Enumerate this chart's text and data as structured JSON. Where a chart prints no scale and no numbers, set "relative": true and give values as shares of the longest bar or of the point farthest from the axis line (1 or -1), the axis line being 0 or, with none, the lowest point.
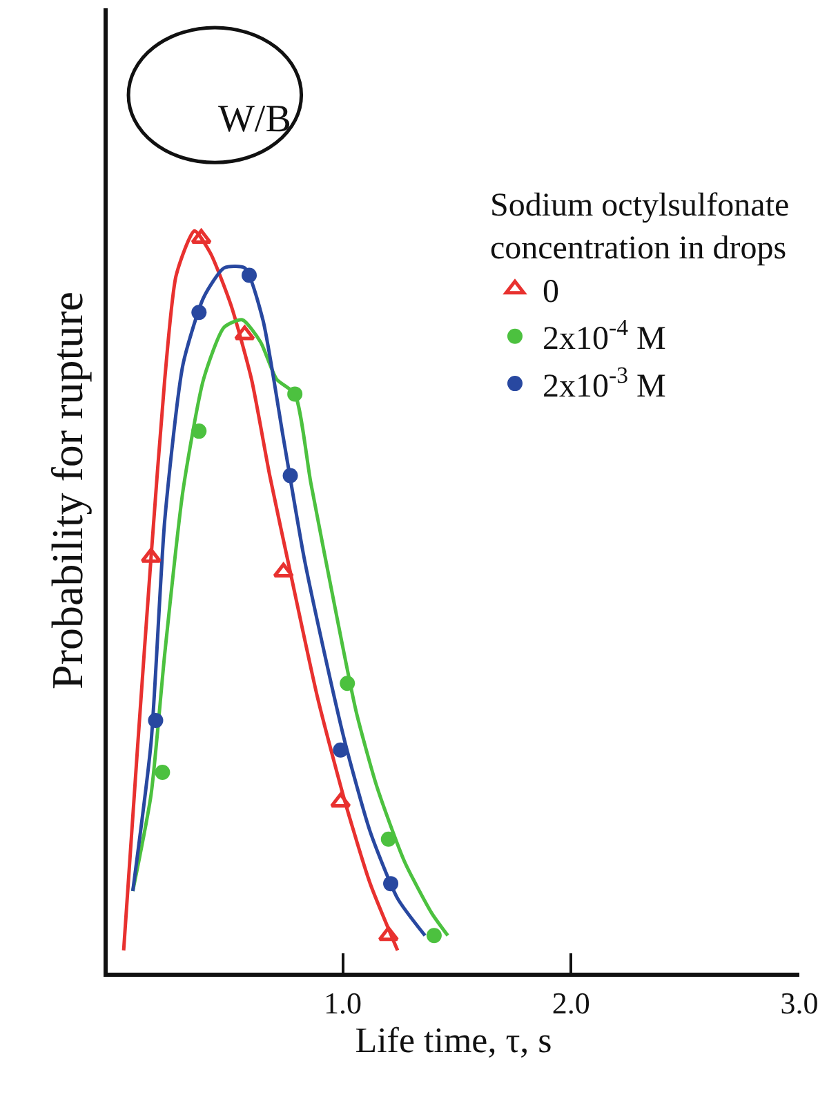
{
  "chart_data": {
    "type": "scatter",
    "relative": true,
    "xlabel": "Life time, τ, s",
    "ylabel": "Probability for rupture",
    "legend_title": "Sodium octylsulfonate\nconcentration in drops",
    "legend": "top right",
    "annotations": [
      "W/B"
    ],
    "xlim": [
      -0.03,
      3.0
    ],
    "xticks": [
      {
        "value": 1,
        "label": "1.0"
      },
      {
        "value": 2,
        "label": "2.0"
      },
      {
        "value": 3,
        "label": "3.0"
      }
    ],
    "tick_labels": "x",
    "series": [
      {
        "name": "0",
        "marker": "triangle",
        "color": "#e8312f",
        "x": [
          0.16,
          0.38,
          0.57,
          0.74,
          0.99,
          1.2
        ],
        "values": [
          0.56,
          0.99,
          0.86,
          0.54,
          0.23,
          0.05
        ]
      },
      {
        "name": "2x10$^{-4}$ M",
        "marker": "circle",
        "color": "#4cc13f",
        "x": [
          0.21,
          0.37,
          0.79,
          1.02,
          1.2,
          1.4
        ],
        "values": [
          0.27,
          0.73,
          0.78,
          0.39,
          0.18,
          0.05
        ]
      },
      {
        "name": "2x10$^{-3}$ M",
        "marker": "circle",
        "color": "#2848a0",
        "x": [
          0.18,
          0.37,
          0.59,
          0.77,
          0.99,
          1.21
        ],
        "values": [
          0.34,
          0.89,
          0.94,
          0.67,
          0.3,
          0.12
        ]
      },
      {
        "type": "line",
        "color": "#e8312f",
        "x": [
          0.04,
          0.1,
          0.16,
          0.22,
          0.27,
          0.35,
          0.42,
          0.51,
          0.6,
          0.68,
          0.77,
          0.89,
          1.01,
          1.12,
          1.24
        ],
        "values": [
          0.03,
          0.3,
          0.56,
          0.8,
          0.94,
          1.0,
          0.97,
          0.9,
          0.8,
          0.67,
          0.54,
          0.37,
          0.23,
          0.12,
          0.03
        ]
      },
      {
        "type": "line",
        "color": "#4cc13f",
        "x": [
          0.08,
          0.16,
          0.22,
          0.3,
          0.39,
          0.48,
          0.56,
          0.64,
          0.71,
          0.79,
          0.86,
          0.98,
          1.06,
          1.15,
          1.27,
          1.39,
          1.46
        ],
        "values": [
          0.11,
          0.24,
          0.43,
          0.65,
          0.8,
          0.87,
          0.88,
          0.85,
          0.8,
          0.78,
          0.66,
          0.47,
          0.35,
          0.25,
          0.15,
          0.08,
          0.05
        ]
      },
      {
        "type": "line",
        "color": "#2848a0",
        "x": [
          0.08,
          0.16,
          0.22,
          0.3,
          0.39,
          0.48,
          0.57,
          0.65,
          0.74,
          0.83,
          0.92,
          1.01,
          1.12,
          1.24,
          1.36
        ],
        "values": [
          0.11,
          0.31,
          0.61,
          0.82,
          0.91,
          0.95,
          0.95,
          0.88,
          0.72,
          0.56,
          0.43,
          0.31,
          0.19,
          0.1,
          0.05
        ]
      }
    ]
  }
}
